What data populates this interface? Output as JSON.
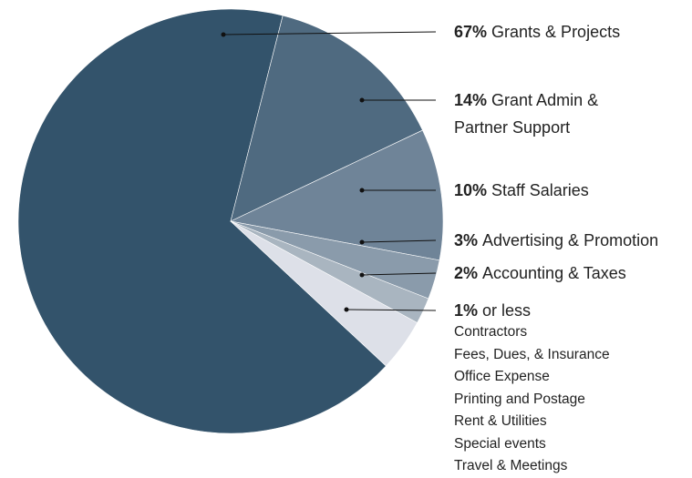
{
  "chart_data": {
    "type": "pie",
    "categories": [
      "Grants & Projects",
      "Grant Admin & Partner Support",
      "Staff Salaries",
      "Advertising & Promotion",
      "Accounting & Taxes",
      null
    ],
    "values": [
      67,
      14,
      10,
      3,
      2,
      4
    ],
    "value_labels": [
      "67%",
      "14%",
      "10%",
      "3%",
      "2%",
      null
    ],
    "colors": [
      "#33536b",
      "#4f6a80",
      "#6f8498",
      "#8a9bab",
      "#a9b5c0",
      "#dde0e8"
    ],
    "other": {
      "label": "1%",
      "text": "or less",
      "items": [
        "Contractors",
        "Fees, Dues, & Insurance",
        "Office Expense",
        "Printing and Postage",
        "Rent & Utilities",
        "Special events",
        "Travel & Meetings"
      ]
    }
  }
}
